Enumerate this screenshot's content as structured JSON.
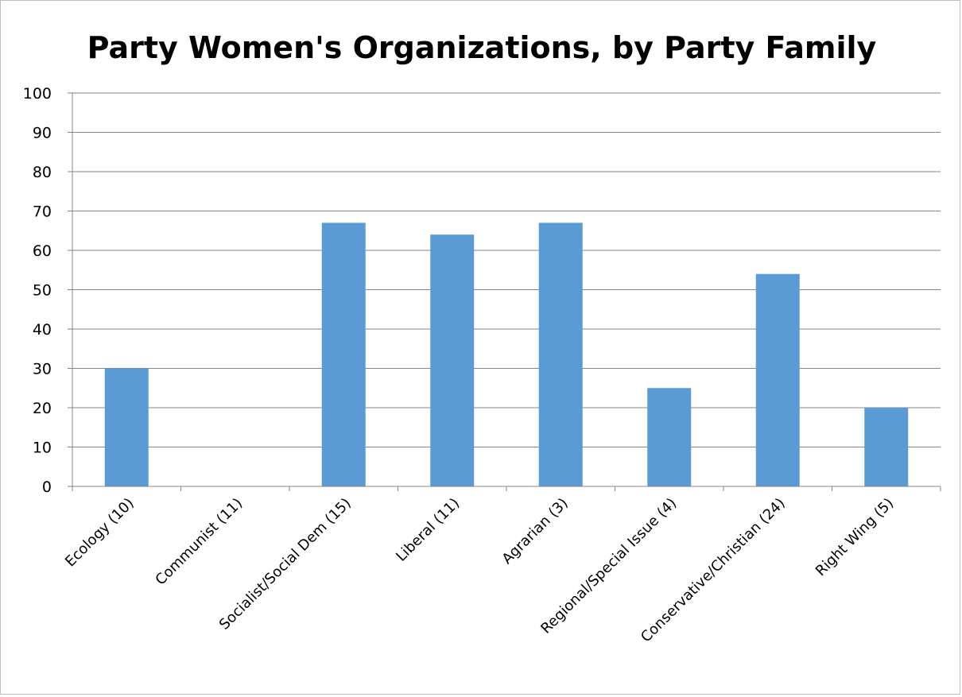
{
  "chart_data": {
    "type": "bar",
    "title": "Party Women's Organizations, by Party Family",
    "xlabel": "",
    "ylabel": "",
    "categories": [
      "Ecology (10)",
      "Communist (11)",
      "Socialist/Social Dem (15)",
      "Liberal (11)",
      "Agrarian (3)",
      "Regional/Special Issue (4)",
      "Conservative/Christian (24)",
      "Right Wing (5)"
    ],
    "values": [
      30,
      0,
      67,
      64,
      67,
      25,
      54,
      20
    ],
    "ylim": [
      0,
      100
    ],
    "yticks": [
      0,
      10,
      20,
      30,
      40,
      50,
      60,
      70,
      80,
      90,
      100
    ],
    "grid": true,
    "legend": "none",
    "bar_color": "#5b9bd5"
  }
}
